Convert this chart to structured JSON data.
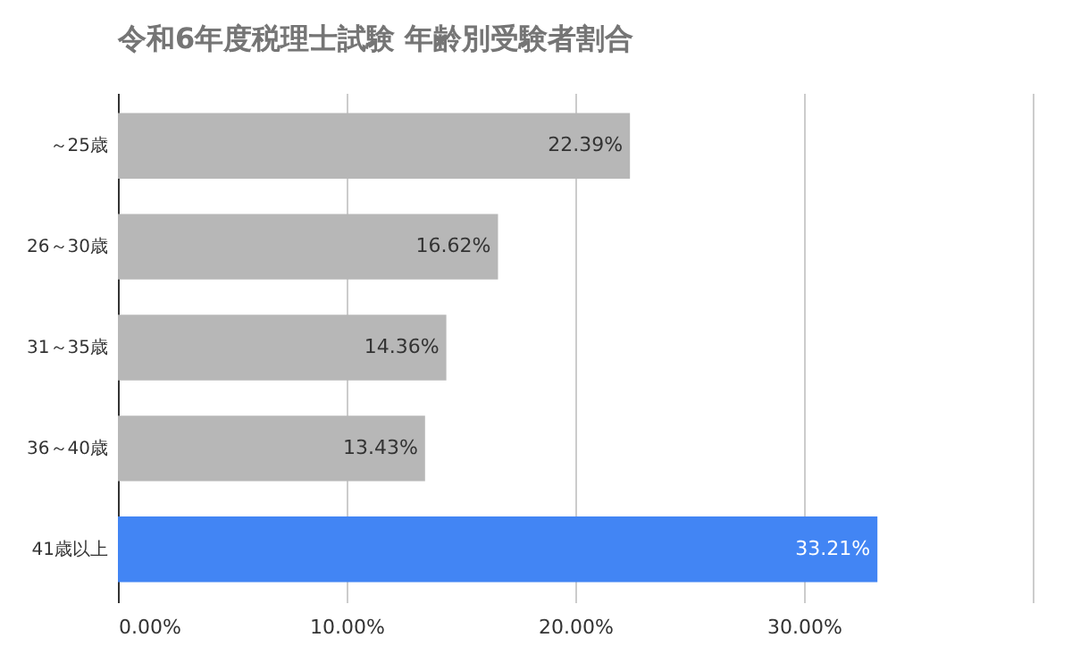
{
  "chart_data": {
    "type": "bar",
    "orientation": "horizontal",
    "title": "令和6年度税理士試験 年齢別受験者割合",
    "categories": [
      "～25歳",
      "26～30歳",
      "31～35歳",
      "36～40歳",
      "41歳以上"
    ],
    "values": [
      22.39,
      16.62,
      14.36,
      13.43,
      33.21
    ],
    "colors": [
      "#b7b7b7",
      "#b7b7b7",
      "#b7b7b7",
      "#b7b7b7",
      "#4285f4"
    ],
    "value_labels": [
      "22.39%",
      "16.62%",
      "14.36%",
      "13.43%",
      "33.21%"
    ],
    "xlim": [
      0,
      40
    ],
    "xticks": [
      {
        "value": 0,
        "label": "0.00%"
      },
      {
        "value": 10,
        "label": "10.00%"
      },
      {
        "value": 20,
        "label": "20.00%"
      },
      {
        "value": 30,
        "label": "30.00%"
      },
      {
        "value": 40,
        "label": null
      }
    ],
    "grid": "x"
  }
}
